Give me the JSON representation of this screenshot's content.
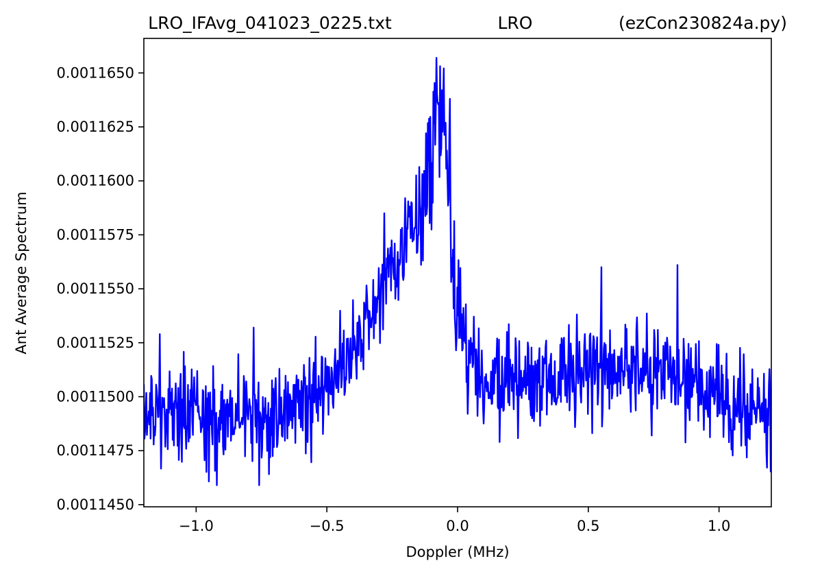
{
  "chart_data": {
    "type": "line",
    "title_left": "LRO_IFAvg_041023_0225.txt",
    "title_center": "LRO",
    "title_right": "(ezCon230824a.py)",
    "xlabel": "Doppler (MHz)",
    "ylabel": "Ant Average Spectrum",
    "xlim": [
      -1.2,
      1.2
    ],
    "ylim": [
      0.0011449,
      0.0011666
    ],
    "x_ticks": [
      -1.0,
      -0.5,
      0.0,
      0.5,
      1.0
    ],
    "x_tick_labels": [
      "−1.0",
      "−0.5",
      "0.0",
      "0.5",
      "1.0"
    ],
    "y_ticks": [
      0.001145,
      0.0011475,
      0.00115,
      0.0011525,
      0.001155,
      0.0011575,
      0.00116,
      0.0011625,
      0.001165
    ],
    "y_tick_labels": [
      "0.0011450",
      "0.0011475",
      "0.0011500",
      "0.0011525",
      "0.0011550",
      "0.0011575",
      "0.0011600",
      "0.0011625",
      "0.0011650"
    ],
    "grid": false,
    "series_color": "#0000ff",
    "series": [
      {
        "noise_note": "dense noisy spectrum; envelope points below define the underlying shape",
        "x_start": -1.2,
        "x_end": 1.2,
        "num_points": 1024,
        "envelope": [
          [
            -1.2,
            0.0011492
          ],
          [
            -1.0,
            0.001149
          ],
          [
            -0.8,
            0.0011488
          ],
          [
            -0.6,
            0.0011495
          ],
          [
            -0.5,
            0.0011505
          ],
          [
            -0.4,
            0.0011522
          ],
          [
            -0.3,
            0.0011548
          ],
          [
            -0.2,
            0.0011568
          ],
          [
            -0.12,
            0.0011592
          ],
          [
            -0.08,
            0.0011622
          ],
          [
            -0.05,
            0.0011618
          ],
          [
            -0.03,
            0.001159
          ],
          [
            -0.01,
            0.0011548
          ],
          [
            0.02,
            0.0011525
          ],
          [
            0.1,
            0.001151
          ],
          [
            0.3,
            0.0011508
          ],
          [
            0.5,
            0.0011512
          ],
          [
            0.7,
            0.0011512
          ],
          [
            0.9,
            0.0011505
          ],
          [
            1.1,
            0.0011495
          ],
          [
            1.2,
            0.0011492
          ]
        ],
        "noise_amplitude": 1.1e-06,
        "extremes": [
          [
            -0.08,
            0.0011657
          ],
          [
            -0.06,
            0.0011642
          ],
          [
            -0.03,
            0.0011638
          ],
          [
            -0.2,
            0.0011592
          ],
          [
            -0.28,
            0.0011585
          ],
          [
            -0.92,
            0.0011459
          ],
          [
            -0.76,
            0.0011459
          ],
          [
            0.16,
            0.0011479
          ],
          [
            0.84,
            0.0011561
          ],
          [
            0.55,
            0.001156
          ],
          [
            -1.14,
            0.0011529
          ],
          [
            -0.78,
            0.0011532
          ]
        ]
      }
    ]
  }
}
